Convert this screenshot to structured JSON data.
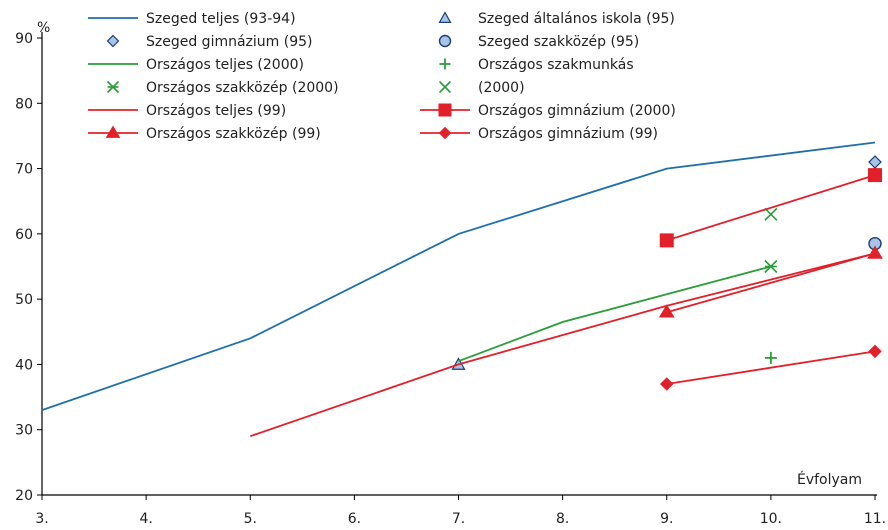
{
  "chart_data": {
    "type": "line",
    "ylabel": "%",
    "xlabel": "Évfolyam",
    "ylim": [
      20,
      90
    ],
    "xlim": [
      3,
      11
    ],
    "y_ticks": [
      "20",
      "30",
      "40",
      "50",
      "60",
      "70",
      "80",
      "90"
    ],
    "x_ticks": [
      "3.",
      "4.",
      "5.",
      "6.",
      "7.",
      "8.",
      "9.",
      "10.",
      "11."
    ],
    "grid": false,
    "legend_position": "top-left",
    "colors": {
      "blue": "#1f6fad",
      "green": "#2a9d3a",
      "red": "#e2202a",
      "marker_blue_fill": "#a9c4e6"
    },
    "series": [
      {
        "name": "Szeged teljes (93-94)",
        "style": "line",
        "color": "#1f6fad",
        "x": [
          3,
          5,
          7,
          9,
          11
        ],
        "y": [
          33,
          44,
          60,
          70,
          74
        ]
      },
      {
        "name": "Szeged általános iskola (95)",
        "style": "marker",
        "marker": "triangle",
        "color": "#1f6fad",
        "x": [
          7
        ],
        "y": [
          40
        ]
      },
      {
        "name": "Szeged gimnázium (95)",
        "style": "marker",
        "marker": "diamond",
        "color": "#1f6fad",
        "x": [
          11
        ],
        "y": [
          71
        ]
      },
      {
        "name": "Szeged szakközép (95)",
        "style": "marker",
        "marker": "circle",
        "color": "#1f6fad",
        "x": [
          11
        ],
        "y": [
          58.5
        ]
      },
      {
        "name": "Országos teljes (2000)",
        "style": "line",
        "color": "#2a9d3a",
        "x": [
          7,
          8,
          10
        ],
        "y": [
          40.5,
          46.5,
          55
        ]
      },
      {
        "name": "Országos szakmunkás",
        "style": "marker",
        "marker": "plus",
        "color": "#2a9d3a",
        "x": [
          10
        ],
        "y": [
          41
        ]
      },
      {
        "name": "Országos szakközép (2000)",
        "style": "marker",
        "marker": "asterisk",
        "color": "#2a9d3a",
        "x": [
          10
        ],
        "y": [
          55
        ]
      },
      {
        "name": "(2000)",
        "style": "marker",
        "marker": "x",
        "color": "#2a9d3a",
        "x": [
          10
        ],
        "y": [
          63
        ]
      },
      {
        "name": "Országos teljes (99)",
        "style": "line",
        "color": "#e2202a",
        "x": [
          5,
          7,
          9,
          11
        ],
        "y": [
          29,
          40,
          49,
          57
        ]
      },
      {
        "name": "Országos gimnázium (2000)",
        "style": "line-marker",
        "marker": "square",
        "color": "#e2202a",
        "x": [
          9,
          11
        ],
        "y": [
          59,
          69
        ]
      },
      {
        "name": "Országos szakközép (99)",
        "style": "line-marker",
        "marker": "triangle",
        "color": "#e2202a",
        "x": [
          9,
          11
        ],
        "y": [
          48,
          57
        ]
      },
      {
        "name": "Országos gimnázium (99)",
        "style": "line-marker",
        "marker": "diamond",
        "color": "#e2202a",
        "x": [
          9,
          11
        ],
        "y": [
          37,
          42
        ]
      }
    ],
    "legend": [
      {
        "label": "Szeged teljes (93-94)",
        "style": "line",
        "marker": "none",
        "color": "#1f6fad"
      },
      {
        "label": "Szeged általános iskola (95)",
        "style": "marker",
        "marker": "triangle",
        "color": "#1f6fad"
      },
      {
        "label": "Szeged gimnázium (95)",
        "style": "marker",
        "marker": "diamond",
        "color": "#1f6fad"
      },
      {
        "label": "Szeged szakközép (95)",
        "style": "marker",
        "marker": "circle",
        "color": "#1f6fad"
      },
      {
        "label": "Országos teljes (2000)",
        "style": "line",
        "marker": "none",
        "color": "#2a9d3a"
      },
      {
        "label": "Országos szakmunkás",
        "style": "marker",
        "marker": "plus",
        "color": "#2a9d3a"
      },
      {
        "label": "Országos szakközép (2000)",
        "style": "marker",
        "marker": "asterisk",
        "color": "#2a9d3a"
      },
      {
        "label": "(2000)",
        "style": "marker",
        "marker": "x",
        "color": "#2a9d3a"
      },
      {
        "label": "Országos teljes (99)",
        "style": "line",
        "marker": "none",
        "color": "#e2202a"
      },
      {
        "label": "Országos gimnázium (2000)",
        "style": "line-marker",
        "marker": "square",
        "color": "#e2202a"
      },
      {
        "label": "Országos szakközép (99)",
        "style": "line-marker",
        "marker": "triangle",
        "color": "#e2202a"
      },
      {
        "label": "Országos gimnázium (99)",
        "style": "line-marker",
        "marker": "diamond",
        "color": "#e2202a"
      }
    ]
  }
}
